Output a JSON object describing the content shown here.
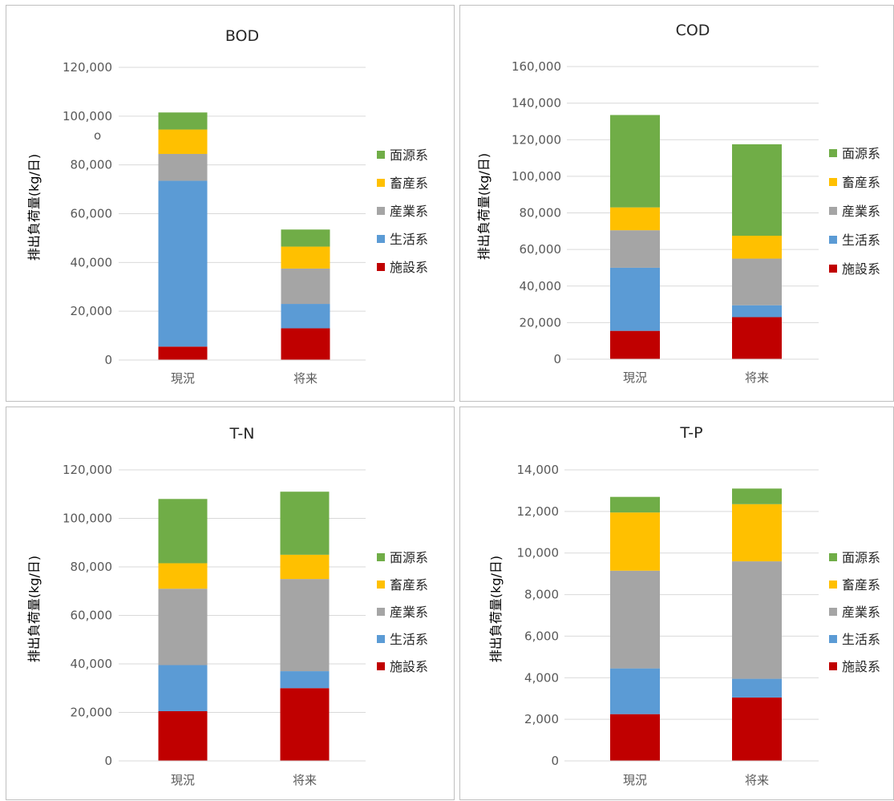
{
  "series_colors": {
    "施設系": "#c00000",
    "生活系": "#5b9bd5",
    "産業系": "#a5a5a5",
    "畜産系": "#ffc000",
    "面源系": "#70ad47"
  },
  "chart_data": [
    {
      "type": "bar",
      "stacked": true,
      "title": "BOD",
      "ylabel": "排出負荷量(kg/日)",
      "ylim": [
        0,
        120000
      ],
      "yticks": [
        "0",
        "20,000",
        "40,000",
        "60,000",
        "80,000",
        "100,000",
        "120,000"
      ],
      "categories": [
        "現況",
        "将来"
      ],
      "legend": [
        "面源系",
        "畜産系",
        "産業系",
        "生活系",
        "施設系"
      ],
      "legend_position": "right",
      "annotation": "o",
      "series": [
        {
          "name": "施設系",
          "values": [
            5500,
            13000
          ]
        },
        {
          "name": "生活系",
          "values": [
            68000,
            10000
          ]
        },
        {
          "name": "産業系",
          "values": [
            11000,
            14500
          ]
        },
        {
          "name": "畜産系",
          "values": [
            10000,
            9000
          ]
        },
        {
          "name": "面源系",
          "values": [
            7000,
            7000
          ]
        }
      ]
    },
    {
      "type": "bar",
      "stacked": true,
      "title": "COD",
      "ylabel": "排出負荷量(kg/日)",
      "ylim": [
        0,
        160000
      ],
      "yticks": [
        "0",
        "20,000",
        "40,000",
        "60,000",
        "80,000",
        "100,000",
        "120,000",
        "140,000",
        "160,000"
      ],
      "categories": [
        "現況",
        "将来"
      ],
      "legend": [
        "面源系",
        "畜産系",
        "産業系",
        "生活系",
        "施設系"
      ],
      "legend_position": "right",
      "series": [
        {
          "name": "施設系",
          "values": [
            15500,
            23000
          ]
        },
        {
          "name": "生活系",
          "values": [
            34500,
            6500
          ]
        },
        {
          "name": "産業系",
          "values": [
            20500,
            25500
          ]
        },
        {
          "name": "畜産系",
          "values": [
            12500,
            12500
          ]
        },
        {
          "name": "面源系",
          "values": [
            50500,
            50000
          ]
        }
      ]
    },
    {
      "type": "bar",
      "stacked": true,
      "title": "T-N",
      "ylabel": "排出負荷量(kg/日)",
      "ylim": [
        0,
        120000
      ],
      "yticks": [
        "0",
        "20,000",
        "40,000",
        "60,000",
        "80,000",
        "100,000",
        "120,000"
      ],
      "categories": [
        "現況",
        "将来"
      ],
      "legend": [
        "面源系",
        "畜産系",
        "産業系",
        "生活系",
        "施設系"
      ],
      "legend_position": "right",
      "series": [
        {
          "name": "施設系",
          "values": [
            20500,
            30000
          ]
        },
        {
          "name": "生活系",
          "values": [
            19000,
            7000
          ]
        },
        {
          "name": "産業系",
          "values": [
            31500,
            38000
          ]
        },
        {
          "name": "畜産系",
          "values": [
            10500,
            10000
          ]
        },
        {
          "name": "面源系",
          "values": [
            26500,
            26000
          ]
        }
      ]
    },
    {
      "type": "bar",
      "stacked": true,
      "title": "T-P",
      "ylabel": "排出負荷量(kg/日)",
      "ylim": [
        0,
        14000
      ],
      "yticks": [
        "0",
        "2,000",
        "4,000",
        "6,000",
        "8,000",
        "10,000",
        "12,000",
        "14,000"
      ],
      "categories": [
        "現況",
        "将来"
      ],
      "legend": [
        "面源系",
        "畜産系",
        "産業系",
        "生活系",
        "施設系"
      ],
      "legend_position": "right",
      "series": [
        {
          "name": "施設系",
          "values": [
            2250,
            3050
          ]
        },
        {
          "name": "生活系",
          "values": [
            2200,
            900
          ]
        },
        {
          "name": "産業系",
          "values": [
            4700,
            5650
          ]
        },
        {
          "name": "畜産系",
          "values": [
            2800,
            2750
          ]
        },
        {
          "name": "面源系",
          "values": [
            750,
            750
          ]
        }
      ]
    }
  ]
}
